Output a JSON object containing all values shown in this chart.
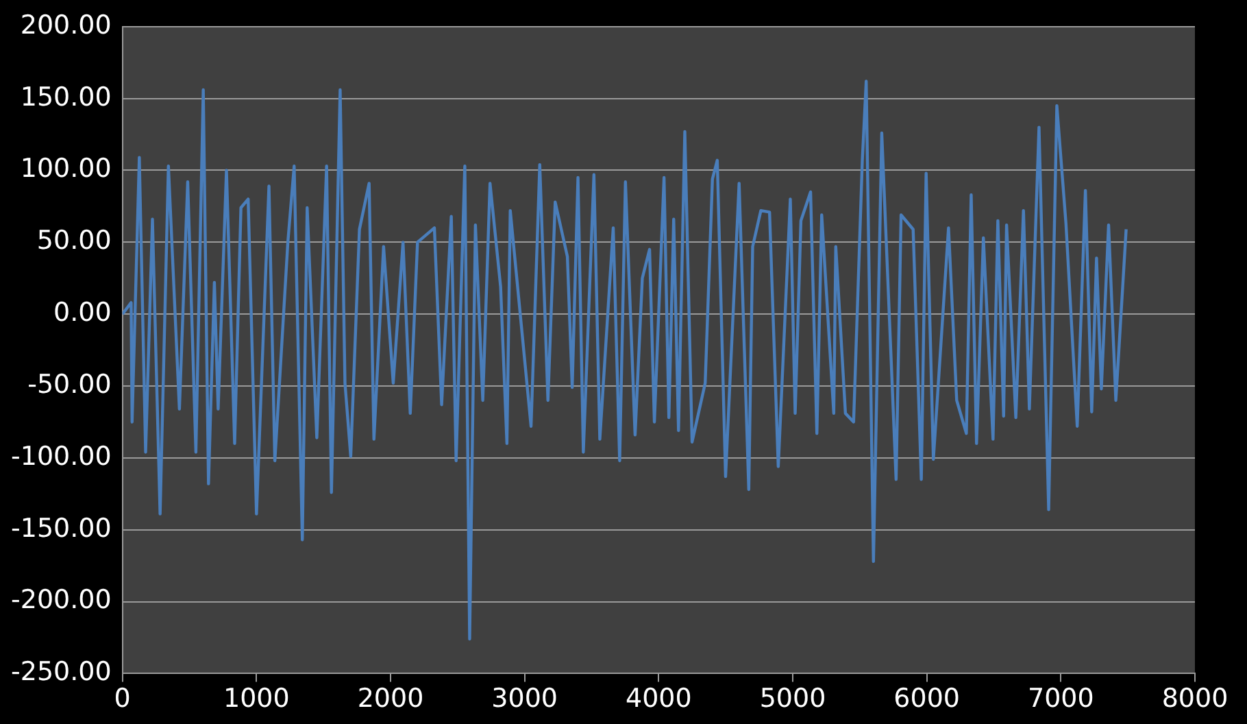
{
  "chart_data": {
    "type": "line",
    "x": [
      0,
      65,
      72,
      126,
      173,
      224,
      281,
      343,
      425,
      487,
      548,
      603,
      642,
      686,
      714,
      776,
      837,
      884,
      938,
      1000,
      1093,
      1137,
      1234,
      1281,
      1342,
      1378,
      1450,
      1523,
      1559,
      1624,
      1660,
      1703,
      1768,
      1840,
      1876,
      1948,
      2020,
      2093,
      2147,
      2201,
      2327,
      2381,
      2453,
      2489,
      2554,
      2590,
      2633,
      2688,
      2742,
      2821,
      2868,
      2893,
      3048,
      3113,
      3174,
      3228,
      3319,
      3355,
      3398,
      3438,
      3517,
      3561,
      3661,
      3709,
      3752,
      3824,
      3878,
      3932,
      3968,
      4040,
      4076,
      4112,
      4148,
      4195,
      4249,
      4347,
      4401,
      4437,
      4499,
      4600,
      4672,
      4701,
      4762,
      4827,
      4892,
      4982,
      5018,
      5061,
      5133,
      5180,
      5216,
      5306,
      5321,
      5393,
      5454,
      5519,
      5548,
      5602,
      5664,
      5771,
      5808,
      5898,
      5959,
      5995,
      6049,
      6162,
      6223,
      6295,
      6331,
      6371,
      6422,
      6494,
      6530,
      6573,
      6595,
      6664,
      6721,
      6765,
      6837,
      6909,
      6970,
      7038,
      7122,
      7183,
      7230,
      7266,
      7302,
      7356,
      7410,
      7487
    ],
    "series": [
      {
        "color": "#4a7ebb",
        "values": [
          0,
          8,
          -75,
          109,
          -96,
          66,
          -139,
          103,
          -66,
          92,
          -96,
          156,
          -118,
          22,
          -66,
          100,
          -90,
          74,
          80,
          -139,
          89,
          -102,
          50,
          103,
          -157,
          74,
          -86,
          103,
          -124,
          156,
          -48,
          -99,
          59,
          91,
          -87,
          47,
          -48,
          50,
          -69,
          50,
          60,
          -63,
          68,
          -102,
          103,
          -226,
          62,
          -60,
          91,
          19,
          -90,
          72,
          -78,
          104,
          -60,
          78,
          40,
          -51,
          95,
          -96,
          97,
          -87,
          60,
          -102,
          92,
          -84,
          25,
          45,
          -75,
          95,
          -72,
          66,
          -81,
          127,
          -89,
          -48,
          94,
          107,
          -113,
          91,
          -122,
          47,
          72,
          71,
          -106,
          80,
          -69,
          65,
          85,
          -83,
          69,
          -69,
          47,
          -69,
          -75,
          107,
          162,
          -172,
          126,
          -115,
          69,
          59,
          -115,
          98,
          -101,
          60,
          -60,
          -83,
          83,
          -90,
          53,
          -87,
          65,
          -71,
          62,
          -72,
          72,
          -66,
          130,
          -136,
          145,
          63,
          -78,
          86,
          -68,
          39,
          -52,
          62,
          -60,
          59
        ]
      }
    ],
    "xlim": [
      0,
      8000
    ],
    "xticks": [
      0,
      1000,
      2000,
      3000,
      4000,
      5000,
      6000,
      7000,
      8000
    ],
    "ylim": [
      -250,
      200
    ],
    "yticks": [
      {
        "value": 200,
        "label": "200.00"
      },
      {
        "value": 150,
        "label": "150.00"
      },
      {
        "value": 100,
        "label": "100.00"
      },
      {
        "value": 50,
        "label": "50.00"
      },
      {
        "value": 0,
        "label": "0.00"
      },
      {
        "value": -50,
        "label": "-50.00"
      },
      {
        "value": -100,
        "label": "-100.00"
      },
      {
        "value": -150,
        "label": "-150.00"
      },
      {
        "value": -200,
        "label": "-200.00"
      },
      {
        "value": -250,
        "label": "-250.00"
      }
    ],
    "grid": "y",
    "marker": "none",
    "line_style": "solid"
  }
}
